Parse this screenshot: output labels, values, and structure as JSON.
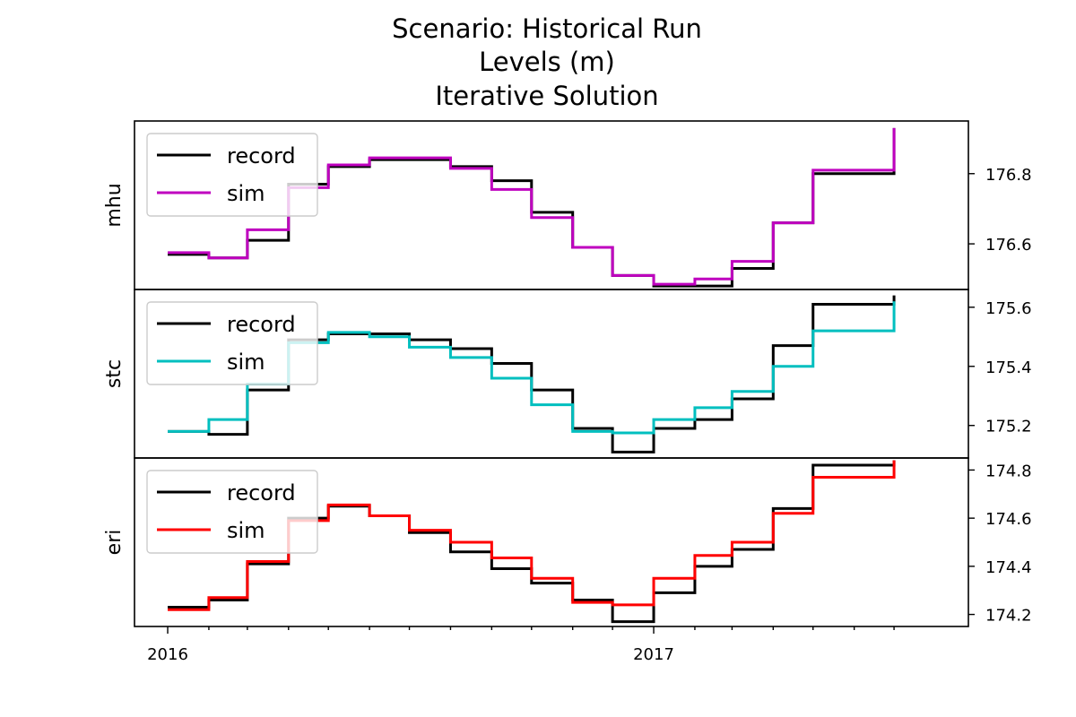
{
  "title_lines": [
    "Scenario: Historical Run",
    "Levels (m)",
    "Iterative Solution"
  ],
  "chart_data": {
    "type": "line",
    "drawstyle": "steps-post",
    "x": [
      "2016-01",
      "2016-02",
      "2016-03",
      "2016-04",
      "2016-05",
      "2016-06",
      "2016-07",
      "2016-08",
      "2016-09",
      "2016-10",
      "2016-11",
      "2016-12",
      "2017-01",
      "2017-02",
      "2017-03",
      "2017-04",
      "2017-05",
      "2017-06",
      "2017-07"
    ],
    "xlim": [
      "2015-12-07",
      "2017-08-26"
    ],
    "x_tick_labels": [
      "2016",
      "2017"
    ],
    "grid": false,
    "legend_position": "upper-left",
    "panels": [
      {
        "ylabel": "mhu",
        "ylim": [
          176.47,
          176.95
        ],
        "yticks": [
          "176.6",
          "176.8"
        ],
        "series": [
          {
            "name": "record",
            "color": "#000000",
            "values": [
              176.57,
              176.56,
              176.61,
              176.77,
              176.82,
              176.84,
              176.84,
              176.82,
              176.78,
              176.69,
              176.59,
              176.51,
              176.48,
              176.48,
              176.53,
              176.66,
              176.8,
              176.8,
              176.93
            ]
          },
          {
            "name": "sim",
            "color": "#bf00bf",
            "values": [
              176.575,
              176.56,
              176.64,
              176.76,
              176.825,
              176.845,
              176.845,
              176.815,
              176.755,
              176.675,
              176.59,
              176.51,
              176.485,
              176.5,
              176.55,
              176.66,
              176.81,
              176.81,
              176.93
            ]
          }
        ]
      },
      {
        "ylabel": "stc",
        "ylim": [
          175.09,
          175.66
        ],
        "yticks": [
          "175.2",
          "175.4",
          "175.6"
        ],
        "series": [
          {
            "name": "record",
            "color": "#000000",
            "values": [
              175.18,
              175.17,
              175.32,
              175.49,
              175.51,
              175.51,
              175.49,
              175.46,
              175.41,
              175.32,
              175.19,
              175.11,
              175.19,
              175.22,
              175.29,
              175.47,
              175.61,
              175.61,
              175.64
            ]
          },
          {
            "name": "sim",
            "color": "#00bfbf",
            "values": [
              175.18,
              175.22,
              175.34,
              175.48,
              175.515,
              175.5,
              175.465,
              175.43,
              175.36,
              175.27,
              175.18,
              175.175,
              175.22,
              175.26,
              175.315,
              175.4,
              175.52,
              175.52,
              175.62
            ]
          }
        ]
      },
      {
        "ylabel": "eri",
        "ylim": [
          174.15,
          174.85
        ],
        "yticks": [
          "174.2",
          "174.4",
          "174.6",
          "174.8"
        ],
        "series": [
          {
            "name": "record",
            "color": "#000000",
            "values": [
              174.23,
              174.26,
              174.41,
              174.6,
              174.65,
              174.61,
              174.54,
              174.46,
              174.39,
              174.33,
              174.26,
              174.17,
              174.29,
              174.4,
              174.47,
              174.64,
              174.82,
              174.82,
              174.84
            ]
          },
          {
            "name": "sim",
            "color": "#ff0000",
            "values": [
              174.22,
              174.27,
              174.42,
              174.59,
              174.655,
              174.61,
              174.55,
              174.5,
              174.435,
              174.35,
              174.25,
              174.24,
              174.35,
              174.445,
              174.5,
              174.62,
              174.77,
              174.77,
              174.84
            ]
          }
        ]
      }
    ]
  }
}
